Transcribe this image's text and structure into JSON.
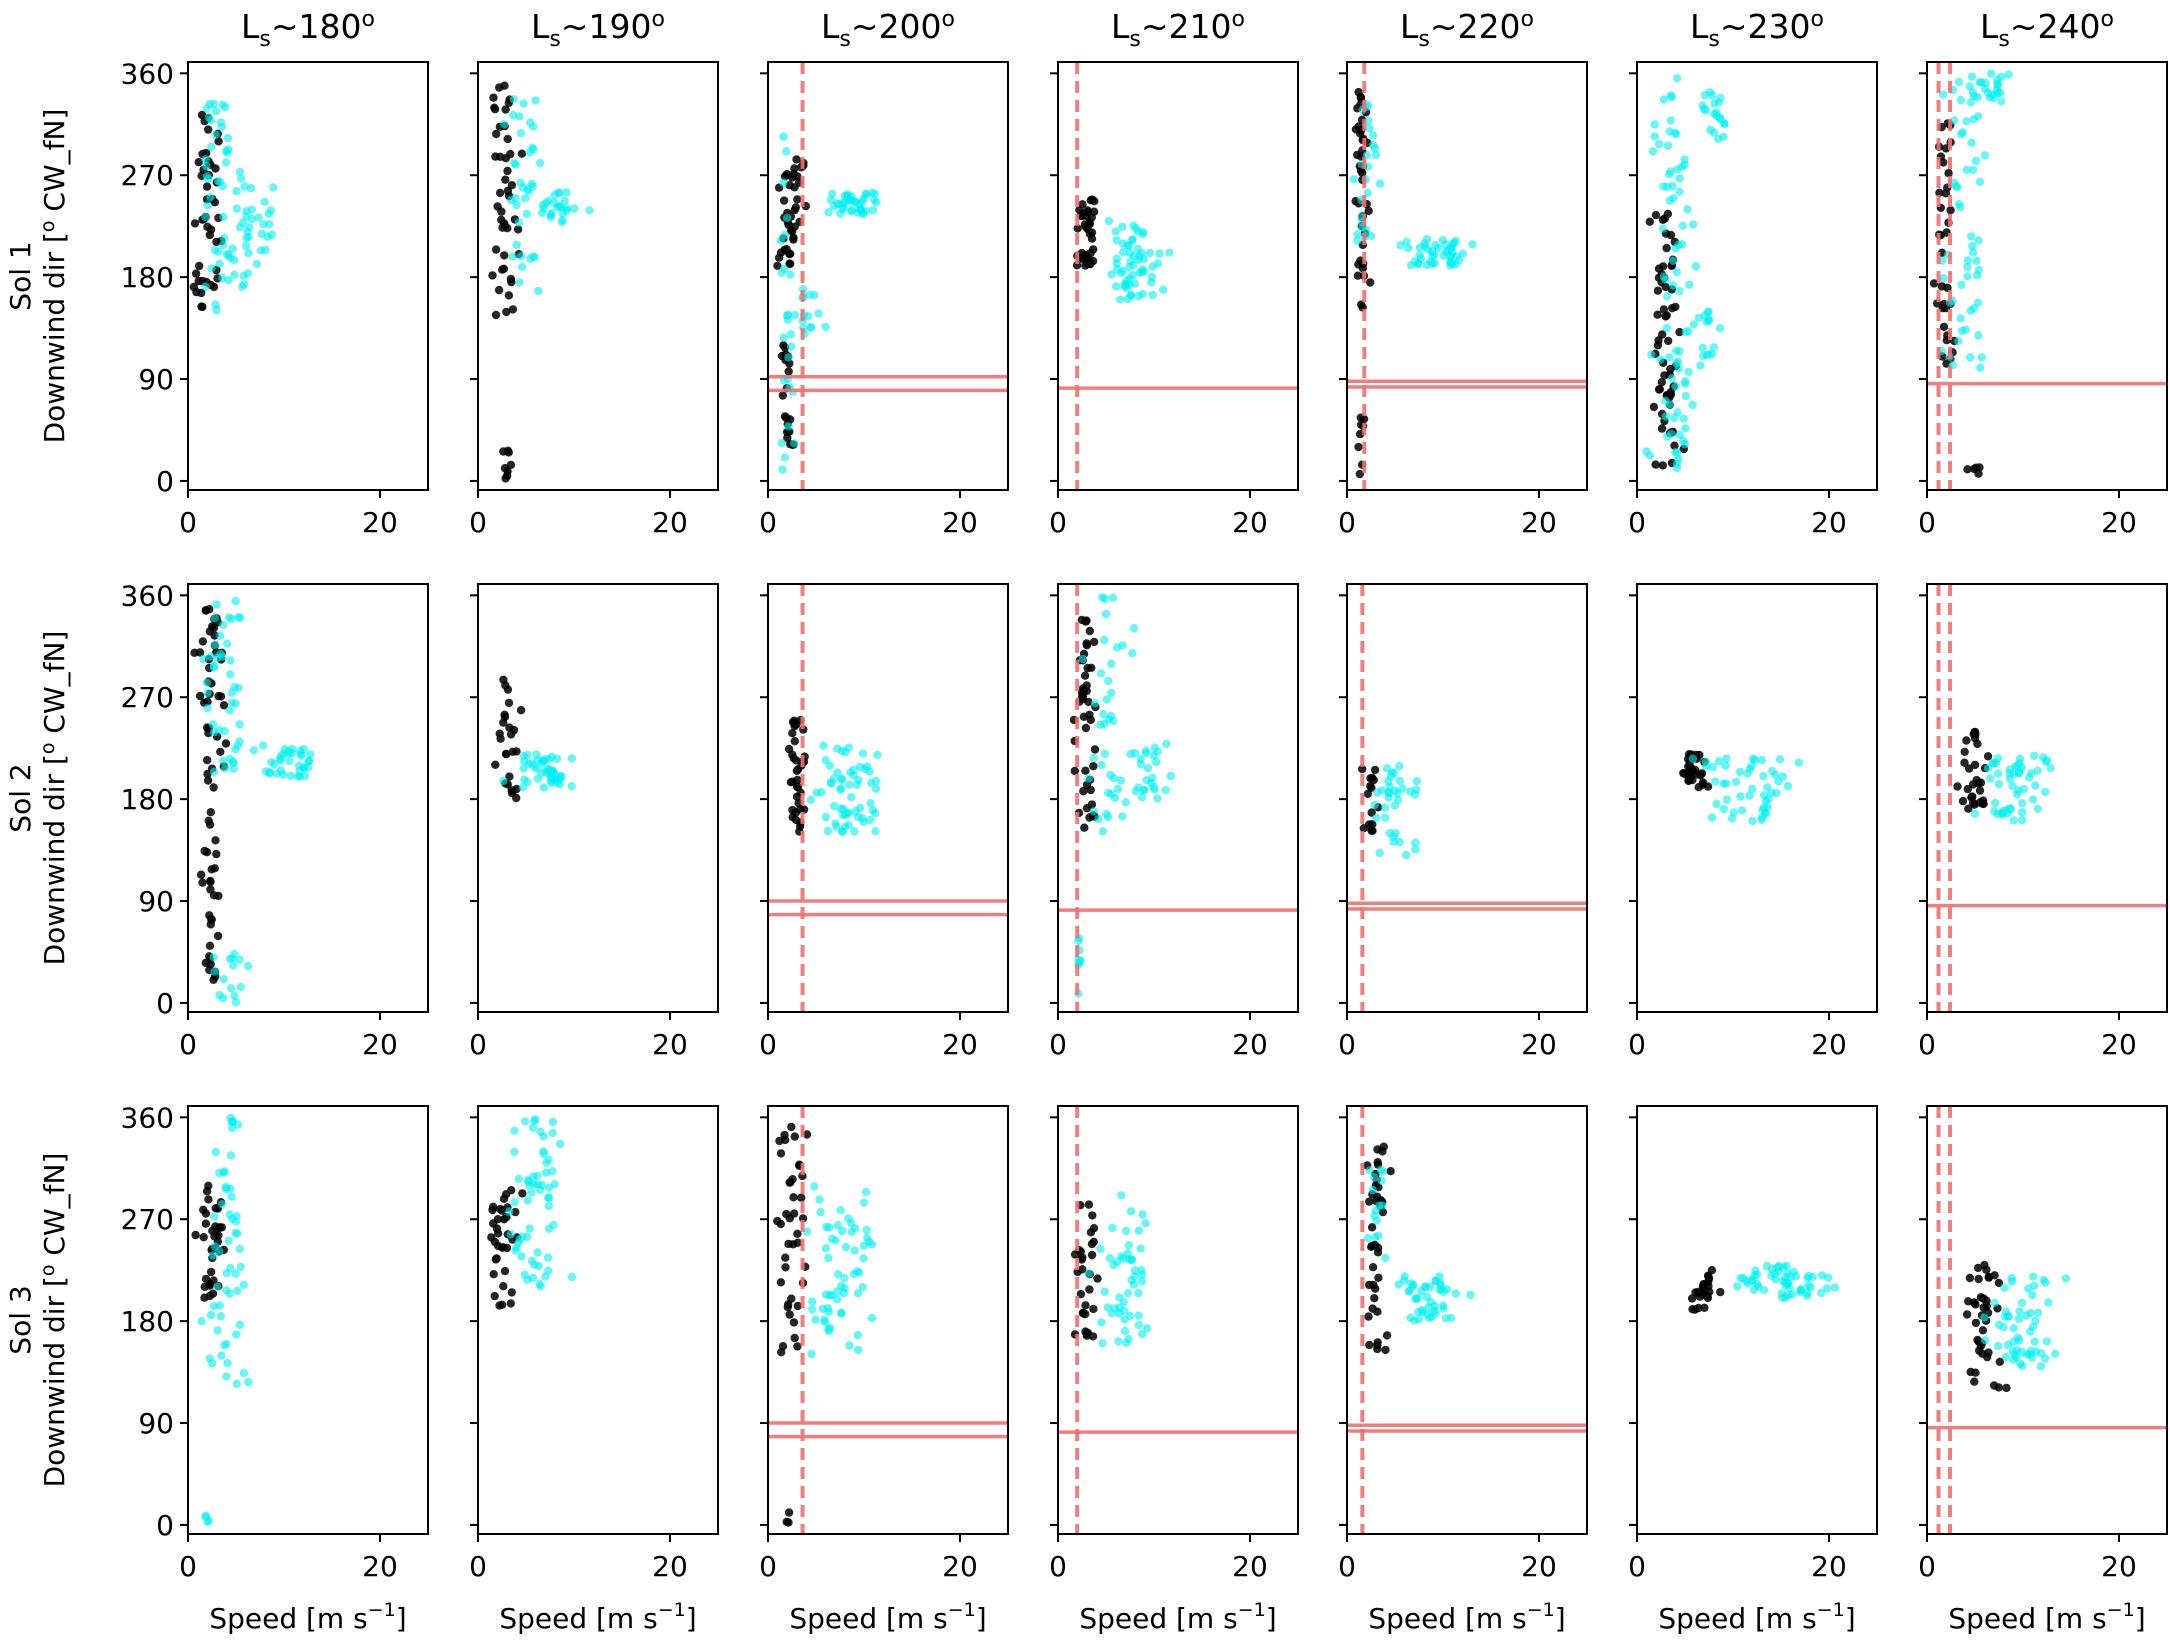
{
  "figure": {
    "x_label_main": "Speed [m s",
    "x_label_exp": "−1",
    "x_label_tail": "]",
    "y_label_line2": "Downwind dir [",
    "y_label_deg": "o",
    "y_label_tail": " CW_fN]",
    "column_prefix": "L",
    "column_sub": "s",
    "column_tilde": "~",
    "row_titles": [
      "Sol 1",
      "Sol 2",
      "Sol 3"
    ],
    "column_titles": [
      "180",
      "190",
      "200",
      "210",
      "220",
      "230",
      "240"
    ],
    "degree_symbol": "o",
    "x_ticks": [
      "0",
      "20"
    ],
    "y_ticks": [
      "0",
      "90",
      "180",
      "270",
      "360"
    ]
  },
  "colors": {
    "black_points": "#000000",
    "cyan_points": "#00f0f0",
    "red_lines": "#f07070"
  },
  "chart_data": {
    "type": "scatter",
    "xlim": [
      0,
      25
    ],
    "ylim": [
      -8,
      370
    ],
    "xlabel": "Speed [m s−1]",
    "ylabel": "Downwind dir [o CW_fN]",
    "series_names": [
      "black",
      "cyan"
    ],
    "panels": [
      {
        "row": 0,
        "col": 0,
        "vlines": [],
        "hlines": [],
        "black": [
          [
            2,
            150,
            330,
            2.5,
            0.6,
            45
          ]
        ],
        "cyan": [
          [
            3,
            150,
            335,
            3,
            1.5,
            40
          ],
          [
            7,
            200,
            260,
            3,
            1.2,
            25
          ],
          [
            5,
            170,
            230,
            2,
            1,
            15
          ]
        ]
      },
      {
        "row": 0,
        "col": 1,
        "vlines": [],
        "hlines": [],
        "black": [
          [
            3,
            140,
            355,
            2,
            0.7,
            45
          ],
          [
            3,
            2,
            30,
            0.8,
            0.4,
            8
          ]
        ],
        "cyan": [
          [
            5,
            150,
            340,
            3,
            1.5,
            35
          ],
          [
            8,
            225,
            255,
            4,
            1,
            25
          ]
        ]
      },
      {
        "row": 0,
        "col": 2,
        "vlines": [
          3.6
        ],
        "hlines": [
          80,
          92
        ],
        "black": [
          [
            2.5,
            190,
            290,
            2,
            0.6,
            40
          ],
          [
            2,
            20,
            120,
            1,
            0.5,
            20
          ]
        ],
        "cyan": [
          [
            9,
            235,
            255,
            4,
            1.5,
            40
          ],
          [
            4,
            120,
            170,
            2,
            1,
            15
          ],
          [
            2,
            10,
            320,
            1,
            0.6,
            25
          ]
        ]
      },
      {
        "row": 0,
        "col": 3,
        "vlines": [
          2
        ],
        "hlines": [
          82
        ],
        "black": [
          [
            3,
            190,
            250,
            1.5,
            1,
            40
          ]
        ],
        "cyan": [
          [
            8,
            160,
            230,
            4,
            1.5,
            60
          ]
        ]
      },
      {
        "row": 0,
        "col": 4,
        "vlines": [
          1.8
        ],
        "hlines": [
          83,
          88
        ],
        "black": [
          [
            1.5,
            150,
            350,
            1,
            0.4,
            40
          ],
          [
            1.5,
            5,
            60,
            0.6,
            0.3,
            8
          ]
        ],
        "cyan": [
          [
            2,
            200,
            340,
            1.5,
            1,
            25
          ],
          [
            9,
            190,
            215,
            5,
            1,
            45
          ]
        ]
      },
      {
        "row": 0,
        "col": 5,
        "vlines": [],
        "hlines": [],
        "black": [
          [
            3,
            10,
            240,
            2,
            1,
            60
          ]
        ],
        "cyan": [
          [
            4,
            10,
            360,
            3,
            1.5,
            80
          ],
          [
            8,
            300,
            345,
            3,
            0.8,
            20
          ],
          [
            7,
            110,
            150,
            3,
            0.8,
            15
          ]
        ]
      },
      {
        "row": 0,
        "col": 6,
        "vlines": [
          1.2,
          2.4
        ],
        "hlines": [
          86
        ],
        "black": [
          [
            2,
            100,
            340,
            1.5,
            0.5,
            35
          ],
          [
            5,
            5,
            12,
            1,
            0.4,
            5
          ]
        ],
        "cyan": [
          [
            4,
            100,
            355,
            3,
            1.5,
            55
          ],
          [
            7,
            335,
            360,
            3,
            0.8,
            20
          ]
        ]
      },
      {
        "row": 1,
        "col": 0,
        "vlines": [],
        "hlines": [],
        "black": [
          [
            2.5,
            190,
            350,
            2,
            0.8,
            40
          ],
          [
            2.5,
            0,
            180,
            1,
            0.6,
            30
          ]
        ],
        "cyan": [
          [
            4,
            200,
            360,
            3,
            1.5,
            45
          ],
          [
            11,
            200,
            230,
            4,
            1,
            35
          ],
          [
            4,
            0,
            50,
            3,
            1,
            15
          ]
        ]
      },
      {
        "row": 1,
        "col": 1,
        "vlines": [],
        "hlines": [],
        "black": [
          [
            3,
            180,
            310,
            1.5,
            0.6,
            25
          ]
        ],
        "cyan": [
          [
            7,
            190,
            220,
            4,
            1.5,
            45
          ]
        ]
      },
      {
        "row": 1,
        "col": 2,
        "vlines": [
          3.6
        ],
        "hlines": [
          78,
          90
        ],
        "black": [
          [
            3,
            150,
            250,
            1,
            0.6,
            35
          ]
        ],
        "cyan": [
          [
            8,
            150,
            230,
            4,
            2,
            60
          ]
        ]
      },
      {
        "row": 1,
        "col": 3,
        "vlines": [
          2
        ],
        "hlines": [
          82
        ],
        "black": [
          [
            3,
            150,
            340,
            1.5,
            0.8,
            45
          ]
        ],
        "cyan": [
          [
            5,
            150,
            360,
            3,
            1.5,
            40
          ],
          [
            10,
            180,
            230,
            3,
            1,
            25
          ],
          [
            2.2,
            5,
            60,
            0.5,
            0.3,
            8
          ]
        ]
      },
      {
        "row": 1,
        "col": 4,
        "vlines": [
          1.6
        ],
        "hlines": [
          83,
          88
        ],
        "black": [
          [
            2.5,
            150,
            210,
            1,
            0.6,
            15
          ]
        ],
        "cyan": [
          [
            5,
            130,
            210,
            3,
            1.5,
            35
          ]
        ]
      },
      {
        "row": 1,
        "col": 5,
        "vlines": [],
        "hlines": [],
        "black": [
          [
            6,
            190,
            220,
            2,
            0.7,
            30
          ]
        ],
        "cyan": [
          [
            11,
            160,
            220,
            7,
            1.5,
            50
          ]
        ]
      },
      {
        "row": 1,
        "col": 6,
        "vlines": [
          1.2,
          2.4
        ],
        "hlines": [
          86
        ],
        "black": [
          [
            5,
            170,
            240,
            2,
            0.8,
            30
          ]
        ],
        "cyan": [
          [
            9,
            160,
            220,
            5,
            1.5,
            50
          ]
        ]
      },
      {
        "row": 2,
        "col": 0,
        "vlines": [],
        "hlines": [],
        "black": [
          [
            2.5,
            190,
            300,
            2,
            0.5,
            35
          ]
        ],
        "cyan": [
          [
            4,
            120,
            360,
            2.5,
            1.5,
            55
          ],
          [
            2,
            2,
            15,
            0.4,
            0.2,
            4
          ]
        ]
      },
      {
        "row": 2,
        "col": 1,
        "vlines": [],
        "hlines": [],
        "black": [
          [
            3,
            190,
            300,
            2,
            1,
            35
          ]
        ],
        "cyan": [
          [
            6,
            210,
            360,
            4,
            1.5,
            60
          ]
        ]
      },
      {
        "row": 2,
        "col": 2,
        "vlines": [
          3.6
        ],
        "hlines": [
          78,
          90
        ],
        "black": [
          [
            2.5,
            150,
            360,
            2,
            0.7,
            40
          ],
          [
            2,
            2,
            20,
            0.3,
            0.3,
            3
          ]
        ],
        "cyan": [
          [
            8,
            150,
            300,
            5,
            1.5,
            60
          ]
        ]
      },
      {
        "row": 2,
        "col": 3,
        "vlines": [
          2
        ],
        "hlines": [
          82
        ],
        "black": [
          [
            3,
            160,
            300,
            2,
            0.7,
            30
          ]
        ],
        "cyan": [
          [
            7,
            160,
            300,
            4,
            1.5,
            50
          ]
        ]
      },
      {
        "row": 2,
        "col": 4,
        "vlines": [
          1.6
        ],
        "hlines": [
          83,
          88
        ],
        "black": [
          [
            3,
            150,
            340,
            1.5,
            0.7,
            40
          ]
        ],
        "cyan": [
          [
            8,
            180,
            220,
            5,
            1.2,
            45
          ],
          [
            3,
            220,
            340,
            1.5,
            1,
            15
          ]
        ]
      },
      {
        "row": 2,
        "col": 5,
        "vlines": [],
        "hlines": [],
        "black": [
          [
            7,
            190,
            225,
            2,
            0.7,
            25
          ]
        ],
        "cyan": [
          [
            15,
            200,
            230,
            8,
            1.2,
            55
          ]
        ]
      },
      {
        "row": 2,
        "col": 6,
        "vlines": [
          1.2,
          2.4
        ],
        "hlines": [
          86
        ],
        "black": [
          [
            6,
            120,
            230,
            2.5,
            1,
            40
          ]
        ],
        "cyan": [
          [
            10,
            140,
            220,
            6,
            1.5,
            55
          ]
        ]
      }
    ]
  }
}
